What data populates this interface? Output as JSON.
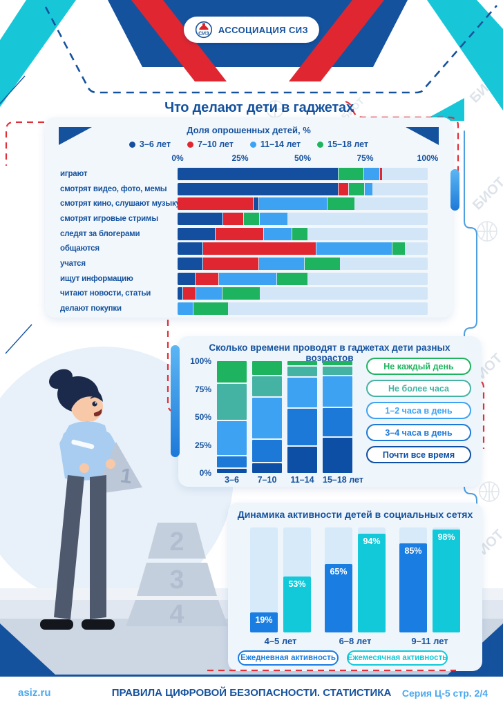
{
  "page": {
    "logo": "АССОЦИАЦИЯ СИЗ",
    "watermark": "БИОТ",
    "footer": {
      "site": "asiz.ru",
      "title": "ПРАВИЛА ЦИФРОВОЙ БЕЗОПАСНОСТИ. СТАТИСТИКА",
      "series": "Серия Ц-5 стр. 2/4"
    }
  },
  "colors": {
    "navy": "#15529e",
    "red": "#e02731",
    "light_blue": "#3ea2f3",
    "green": "#1eb45f",
    "teal": "#45b3a4",
    "mid_blue": "#1d79d8",
    "dark_navy": "#0d4fa5",
    "cyan": "#17c7d8",
    "bar_track": "#d2e6f7",
    "panel_bg": "#eef5fb"
  },
  "illustration": {
    "pyramid_numbers": [
      "1",
      "2",
      "3",
      "4"
    ]
  },
  "chart_data": [
    {
      "type": "bar",
      "stacked": true,
      "orientation": "horizontal",
      "title": "Что делают дети в гаджетах",
      "subtitle": "Доля опрошенных детей, %",
      "xlim": [
        0,
        100
      ],
      "x_ticks": [
        "0%",
        "25%",
        "50%",
        "75%",
        "100%"
      ],
      "legend": [
        {
          "key": "3-6",
          "label": "3–6 лет",
          "color": "#134f9e"
        },
        {
          "key": "7-10",
          "label": "7–10 лет",
          "color": "#e02731"
        },
        {
          "key": "11-14",
          "label": "11–14 лет",
          "color": "#3ea2f3"
        },
        {
          "key": "15-18",
          "label": "15–18 лет",
          "color": "#1eb45f"
        }
      ],
      "rows": [
        {
          "label": "играют",
          "segments": [
            [
              "3-6",
              64
            ],
            [
              "15-18",
              10
            ],
            [
              "11-14",
              6
            ],
            [
              "7-10",
              1
            ]
          ]
        },
        {
          "label": "смотрят видео, фото, мемы",
          "segments": [
            [
              "3-6",
              64
            ],
            [
              "7-10",
              4
            ],
            [
              "15-18",
              6
            ],
            [
              "11-14",
              3
            ]
          ]
        },
        {
          "label": "смотрят кино, слушают музыку",
          "segments": [
            [
              "7-10",
              30
            ],
            [
              "3-6",
              2
            ],
            [
              "11-14",
              27
            ],
            [
              "15-18",
              11
            ]
          ]
        },
        {
          "label": "смотрят игровые стримы",
          "segments": [
            [
              "3-6",
              18
            ],
            [
              "7-10",
              8
            ],
            [
              "15-18",
              6
            ],
            [
              "11-14",
              11
            ]
          ]
        },
        {
          "label": "следят за блогерами",
          "segments": [
            [
              "3-6",
              15
            ],
            [
              "7-10",
              19
            ],
            [
              "11-14",
              11
            ],
            [
              "15-18",
              6
            ]
          ]
        },
        {
          "label": "общаются",
          "segments": [
            [
              "3-6",
              10
            ],
            [
              "7-10",
              45
            ],
            [
              "11-14",
              30
            ],
            [
              "15-18",
              5
            ]
          ]
        },
        {
          "label": "учатся",
          "segments": [
            [
              "3-6",
              10
            ],
            [
              "7-10",
              22
            ],
            [
              "11-14",
              18
            ],
            [
              "15-18",
              14
            ]
          ]
        },
        {
          "label": "ищут информацию",
          "segments": [
            [
              "3-6",
              7
            ],
            [
              "7-10",
              9
            ],
            [
              "11-14",
              23
            ],
            [
              "15-18",
              12
            ]
          ]
        },
        {
          "label": "читают новости, статьи",
          "segments": [
            [
              "3-6",
              2
            ],
            [
              "7-10",
              5
            ],
            [
              "11-14",
              10
            ],
            [
              "15-18",
              15
            ]
          ]
        },
        {
          "label": "делают покупки",
          "segments": [
            [
              "11-14",
              6
            ],
            [
              "15-18",
              14
            ]
          ]
        }
      ]
    },
    {
      "type": "bar",
      "stacked": true,
      "title": "Сколько времени проводят в гаджетах дети разных возрастов",
      "categories": [
        "3–6",
        "7–10",
        "11–14",
        "15–18 лет"
      ],
      "y_ticks": [
        "100%",
        "75%",
        "50%",
        "25%",
        "0%"
      ],
      "ylim": [
        0,
        100
      ],
      "series": [
        {
          "name": "Не каждый день",
          "color": "#1eb45f",
          "values": [
            20,
            13,
            4,
            4
          ]
        },
        {
          "name": "Не более часа",
          "color": "#45b3a4",
          "values": [
            34,
            19,
            9,
            8
          ]
        },
        {
          "name": "1–2 часа в день",
          "color": "#3ea2f3",
          "values": [
            32,
            38,
            28,
            28
          ]
        },
        {
          "name": "3–4 часа в день",
          "color": "#1d79d8",
          "values": [
            10,
            21,
            34,
            27
          ]
        },
        {
          "name": "Почти все время",
          "color": "#0d4fa5",
          "values": [
            4,
            9,
            25,
            33
          ]
        }
      ]
    },
    {
      "type": "bar",
      "title": "Динамика активности детей в социальных сетях",
      "categories": [
        "4–5 лет",
        "6–8 лет",
        "9–11 лет"
      ],
      "ylim": [
        0,
        100
      ],
      "value_suffix": "%",
      "series": [
        {
          "name": "Ежедневная активность",
          "color": "#1a7de2",
          "values": [
            19,
            65,
            85
          ]
        },
        {
          "name": "Ежемесячная активность",
          "color": "#12c9d9",
          "values": [
            53,
            94,
            98
          ]
        }
      ]
    }
  ]
}
